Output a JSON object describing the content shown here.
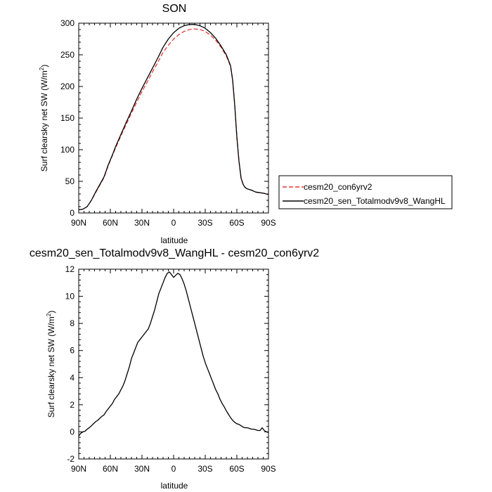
{
  "chart_data": [
    {
      "type": "line",
      "title": "SON",
      "xlabel": "latitude",
      "ylabel": "Surf clearsky net SW (W/m",
      "ylabel_sup": "2",
      "ylabel_tail": ")",
      "xlim": [
        90,
        -90
      ],
      "ylim": [
        0,
        300
      ],
      "x_ticks": [
        {
          "v": 90,
          "label": "90N"
        },
        {
          "v": 60,
          "label": "60N"
        },
        {
          "v": 30,
          "label": "30N"
        },
        {
          "v": 0,
          "label": "0"
        },
        {
          "v": -30,
          "label": "30S"
        },
        {
          "v": -60,
          "label": "60S"
        },
        {
          "v": -90,
          "label": "90S"
        }
      ],
      "y_ticks": [
        0,
        50,
        100,
        150,
        200,
        250,
        300
      ],
      "legend": "right",
      "series": [
        {
          "name": "cesm20_con6yrv2",
          "color": "#e53935",
          "dash": "dashed",
          "points": [
            [
              90,
              5
            ],
            [
              86,
              6
            ],
            [
              82,
              10
            ],
            [
              78,
              20
            ],
            [
              74,
              32
            ],
            [
              70,
              44
            ],
            [
              66,
              56
            ],
            [
              62,
              75
            ],
            [
              58,
              91
            ],
            [
              55,
              103
            ],
            [
              50,
              122
            ],
            [
              45,
              140
            ],
            [
              40,
              158
            ],
            [
              35,
              175
            ],
            [
              30,
              192
            ],
            [
              25,
              207
            ],
            [
              20,
              223
            ],
            [
              15,
              238
            ],
            [
              10,
              254
            ],
            [
              5,
              265
            ],
            [
              0,
              275
            ],
            [
              -5,
              282
            ],
            [
              -10,
              287
            ],
            [
              -15,
              290
            ],
            [
              -20,
              291
            ],
            [
              -25,
              290
            ],
            [
              -30,
              287
            ],
            [
              -35,
              281
            ],
            [
              -40,
              273
            ],
            [
              -45,
              262
            ],
            [
              -50,
              248
            ],
            [
              -54,
              232
            ],
            [
              -56,
              210
            ],
            [
              -58,
              170
            ],
            [
              -60,
              120
            ],
            [
              -62,
              82
            ],
            [
              -64,
              55
            ],
            [
              -66,
              45
            ],
            [
              -68,
              40
            ],
            [
              -70,
              38
            ],
            [
              -74,
              36
            ],
            [
              -78,
              33
            ],
            [
              -82,
              32
            ],
            [
              -86,
              31
            ],
            [
              -90,
              29
            ]
          ]
        },
        {
          "name": "cesm20_sen_Totalmodv9v8_WangHL",
          "color": "#000000",
          "dash": "solid",
          "points": [
            [
              90,
              5
            ],
            [
              86,
              6
            ],
            [
              82,
              10
            ],
            [
              78,
              20
            ],
            [
              74,
              33
            ],
            [
              70,
              45
            ],
            [
              66,
              57
            ],
            [
              62,
              76
            ],
            [
              58,
              92
            ],
            [
              55,
              105
            ],
            [
              50,
              124
            ],
            [
              45,
              143
            ],
            [
              40,
              161
            ],
            [
              35,
              180
            ],
            [
              30,
              197
            ],
            [
              25,
              213
            ],
            [
              20,
              229
            ],
            [
              15,
              245
            ],
            [
              10,
              262
            ],
            [
              5,
              275
            ],
            [
              0,
              285
            ],
            [
              -5,
              292
            ],
            [
              -10,
              296
            ],
            [
              -15,
              298
            ],
            [
              -20,
              298
            ],
            [
              -25,
              296
            ],
            [
              -30,
              292
            ],
            [
              -35,
              285
            ],
            [
              -40,
              276
            ],
            [
              -45,
              264
            ],
            [
              -50,
              250
            ],
            [
              -54,
              233
            ],
            [
              -56,
              210
            ],
            [
              -58,
              170
            ],
            [
              -60,
              120
            ],
            [
              -62,
              82
            ],
            [
              -64,
              55
            ],
            [
              -66,
              45
            ],
            [
              -68,
              40
            ],
            [
              -70,
              38
            ],
            [
              -74,
              36
            ],
            [
              -78,
              33
            ],
            [
              -82,
              32
            ],
            [
              -86,
              31
            ],
            [
              -90,
              29
            ]
          ]
        }
      ]
    },
    {
      "type": "line",
      "title": "cesm20_sen_Totalmodv9v8_WangHL - cesm20_con6yrv2",
      "xlabel": "latitude",
      "ylabel": "Surf clearsky net SW (W/m",
      "ylabel_sup": "2",
      "ylabel_tail": ")",
      "xlim": [
        90,
        -90
      ],
      "ylim": [
        -2,
        12
      ],
      "x_ticks": [
        {
          "v": 90,
          "label": "90N"
        },
        {
          "v": 60,
          "label": "60N"
        },
        {
          "v": 30,
          "label": "30N"
        },
        {
          "v": 0,
          "label": "0"
        },
        {
          "v": -30,
          "label": "30S"
        },
        {
          "v": -60,
          "label": "60S"
        },
        {
          "v": -90,
          "label": "90S"
        }
      ],
      "y_ticks": [
        -2,
        0,
        2,
        4,
        6,
        8,
        10,
        12
      ],
      "series": [
        {
          "color": "#000000",
          "dash": "solid",
          "points": [
            [
              90,
              -0.3
            ],
            [
              88,
              -0.1
            ],
            [
              86,
              0.0
            ],
            [
              84,
              0.05
            ],
            [
              82,
              0.2
            ],
            [
              80,
              0.3
            ],
            [
              78,
              0.45
            ],
            [
              76,
              0.6
            ],
            [
              74,
              0.75
            ],
            [
              72,
              0.85
            ],
            [
              70,
              1.0
            ],
            [
              68,
              1.15
            ],
            [
              66,
              1.25
            ],
            [
              64,
              1.5
            ],
            [
              62,
              1.7
            ],
            [
              60,
              1.9
            ],
            [
              58,
              2.1
            ],
            [
              56,
              2.4
            ],
            [
              54,
              2.6
            ],
            [
              52,
              2.8
            ],
            [
              50,
              3.1
            ],
            [
              48,
              3.4
            ],
            [
              46,
              3.8
            ],
            [
              44,
              4.3
            ],
            [
              42,
              4.8
            ],
            [
              40,
              5.4
            ],
            [
              38,
              5.8
            ],
            [
              36,
              6.2
            ],
            [
              34,
              6.6
            ],
            [
              32,
              6.8
            ],
            [
              30,
              7.0
            ],
            [
              28,
              7.2
            ],
            [
              26,
              7.4
            ],
            [
              24,
              7.6
            ],
            [
              22,
              8.0
            ],
            [
              20,
              8.5
            ],
            [
              18,
              9.0
            ],
            [
              16,
              9.6
            ],
            [
              14,
              10.2
            ],
            [
              12,
              10.6
            ],
            [
              10,
              11.0
            ],
            [
              8,
              11.4
            ],
            [
              6,
              11.7
            ],
            [
              4,
              11.8
            ],
            [
              2,
              11.6
            ],
            [
              0,
              11.4
            ],
            [
              -2,
              11.55
            ],
            [
              -4,
              11.7
            ],
            [
              -6,
              11.6
            ],
            [
              -8,
              11.3
            ],
            [
              -10,
              10.9
            ],
            [
              -12,
              10.4
            ],
            [
              -14,
              9.8
            ],
            [
              -16,
              9.2
            ],
            [
              -18,
              8.6
            ],
            [
              -20,
              8.0
            ],
            [
              -22,
              7.4
            ],
            [
              -24,
              6.8
            ],
            [
              -26,
              6.2
            ],
            [
              -28,
              5.6
            ],
            [
              -30,
              5.1
            ],
            [
              -32,
              4.7
            ],
            [
              -34,
              4.3
            ],
            [
              -36,
              3.9
            ],
            [
              -38,
              3.5
            ],
            [
              -40,
              3.1
            ],
            [
              -42,
              2.8
            ],
            [
              -44,
              2.4
            ],
            [
              -46,
              2.1
            ],
            [
              -48,
              1.85
            ],
            [
              -50,
              1.55
            ],
            [
              -52,
              1.3
            ],
            [
              -54,
              1.05
            ],
            [
              -56,
              0.85
            ],
            [
              -58,
              0.7
            ],
            [
              -60,
              0.6
            ],
            [
              -62,
              0.55
            ],
            [
              -64,
              0.45
            ],
            [
              -66,
              0.35
            ],
            [
              -68,
              0.3
            ],
            [
              -70,
              0.3
            ],
            [
              -72,
              0.25
            ],
            [
              -74,
              0.2
            ],
            [
              -76,
              0.2
            ],
            [
              -78,
              0.15
            ],
            [
              -80,
              0.1
            ],
            [
              -82,
              0.1
            ],
            [
              -84,
              0.3
            ],
            [
              -86,
              0.1
            ],
            [
              -88,
              0.0
            ],
            [
              -90,
              -0.05
            ]
          ]
        }
      ]
    }
  ]
}
